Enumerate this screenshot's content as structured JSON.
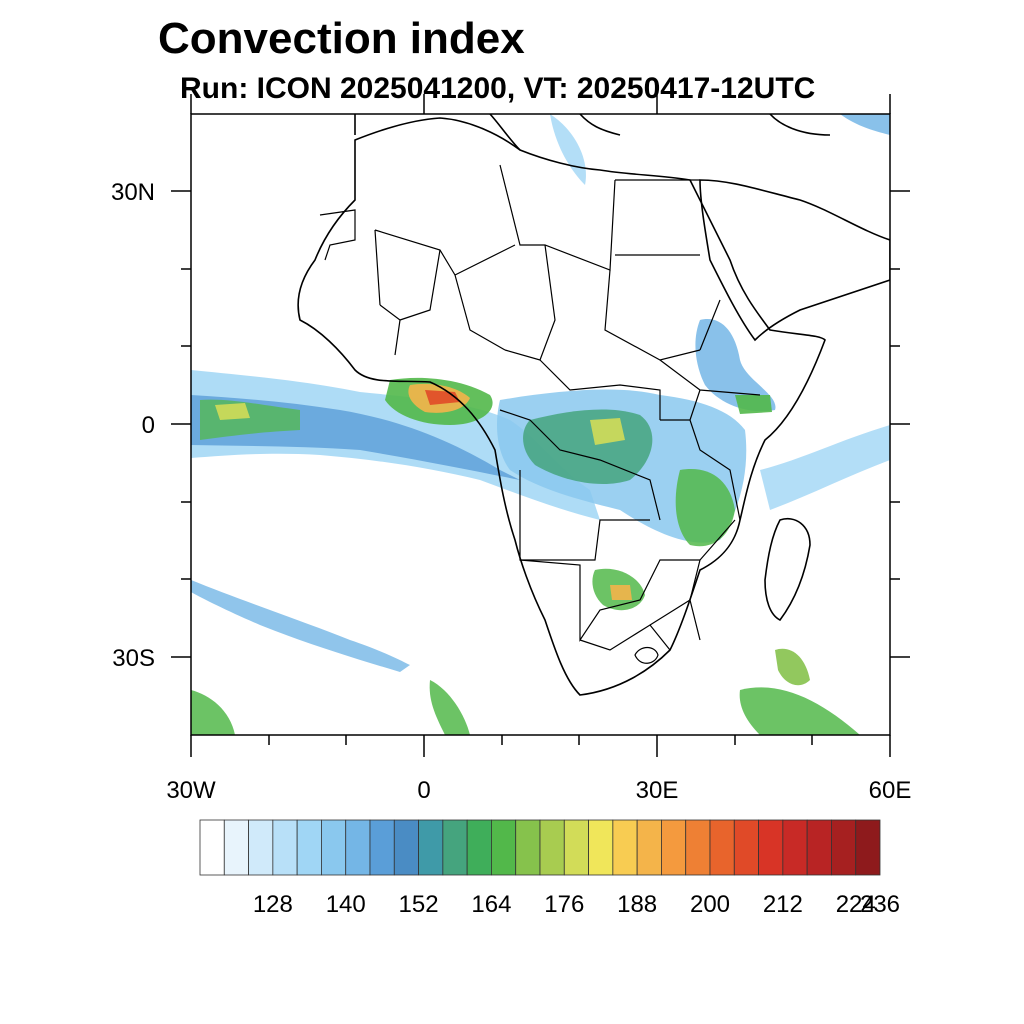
{
  "title": "Convection index",
  "subtitle": "Run: ICON 2025041200,  VT: 20250417-12UTC",
  "map": {
    "region": "Africa",
    "lon_range": [
      -30,
      60
    ],
    "lat_range": [
      -40,
      40
    ],
    "lat_labels": [
      "30N",
      "0",
      "30S"
    ],
    "lon_labels": [
      "30W",
      "0",
      "30E",
      "60E"
    ]
  },
  "colorbar": {
    "labels": [
      "128",
      "140",
      "152",
      "164",
      "176",
      "188",
      "200",
      "212",
      "224",
      "236"
    ],
    "colors": [
      "#ffffff",
      "#e8f4fc",
      "#d0eafa",
      "#b8e0f8",
      "#a0d6f5",
      "#8ac8ee",
      "#74b6e6",
      "#5a9ed8",
      "#4a8cc4",
      "#3f9aa8",
      "#45a47e",
      "#3fae5a",
      "#52b84a",
      "#86c24c",
      "#a8cc50",
      "#d2dc58",
      "#f0e65a",
      "#f8cc52",
      "#f4b44a",
      "#f49a3e",
      "#ee8034",
      "#e8642c",
      "#e04a28",
      "#d83426",
      "#c82a26",
      "#b82424",
      "#a62020",
      "#8e1a1c"
    ]
  }
}
